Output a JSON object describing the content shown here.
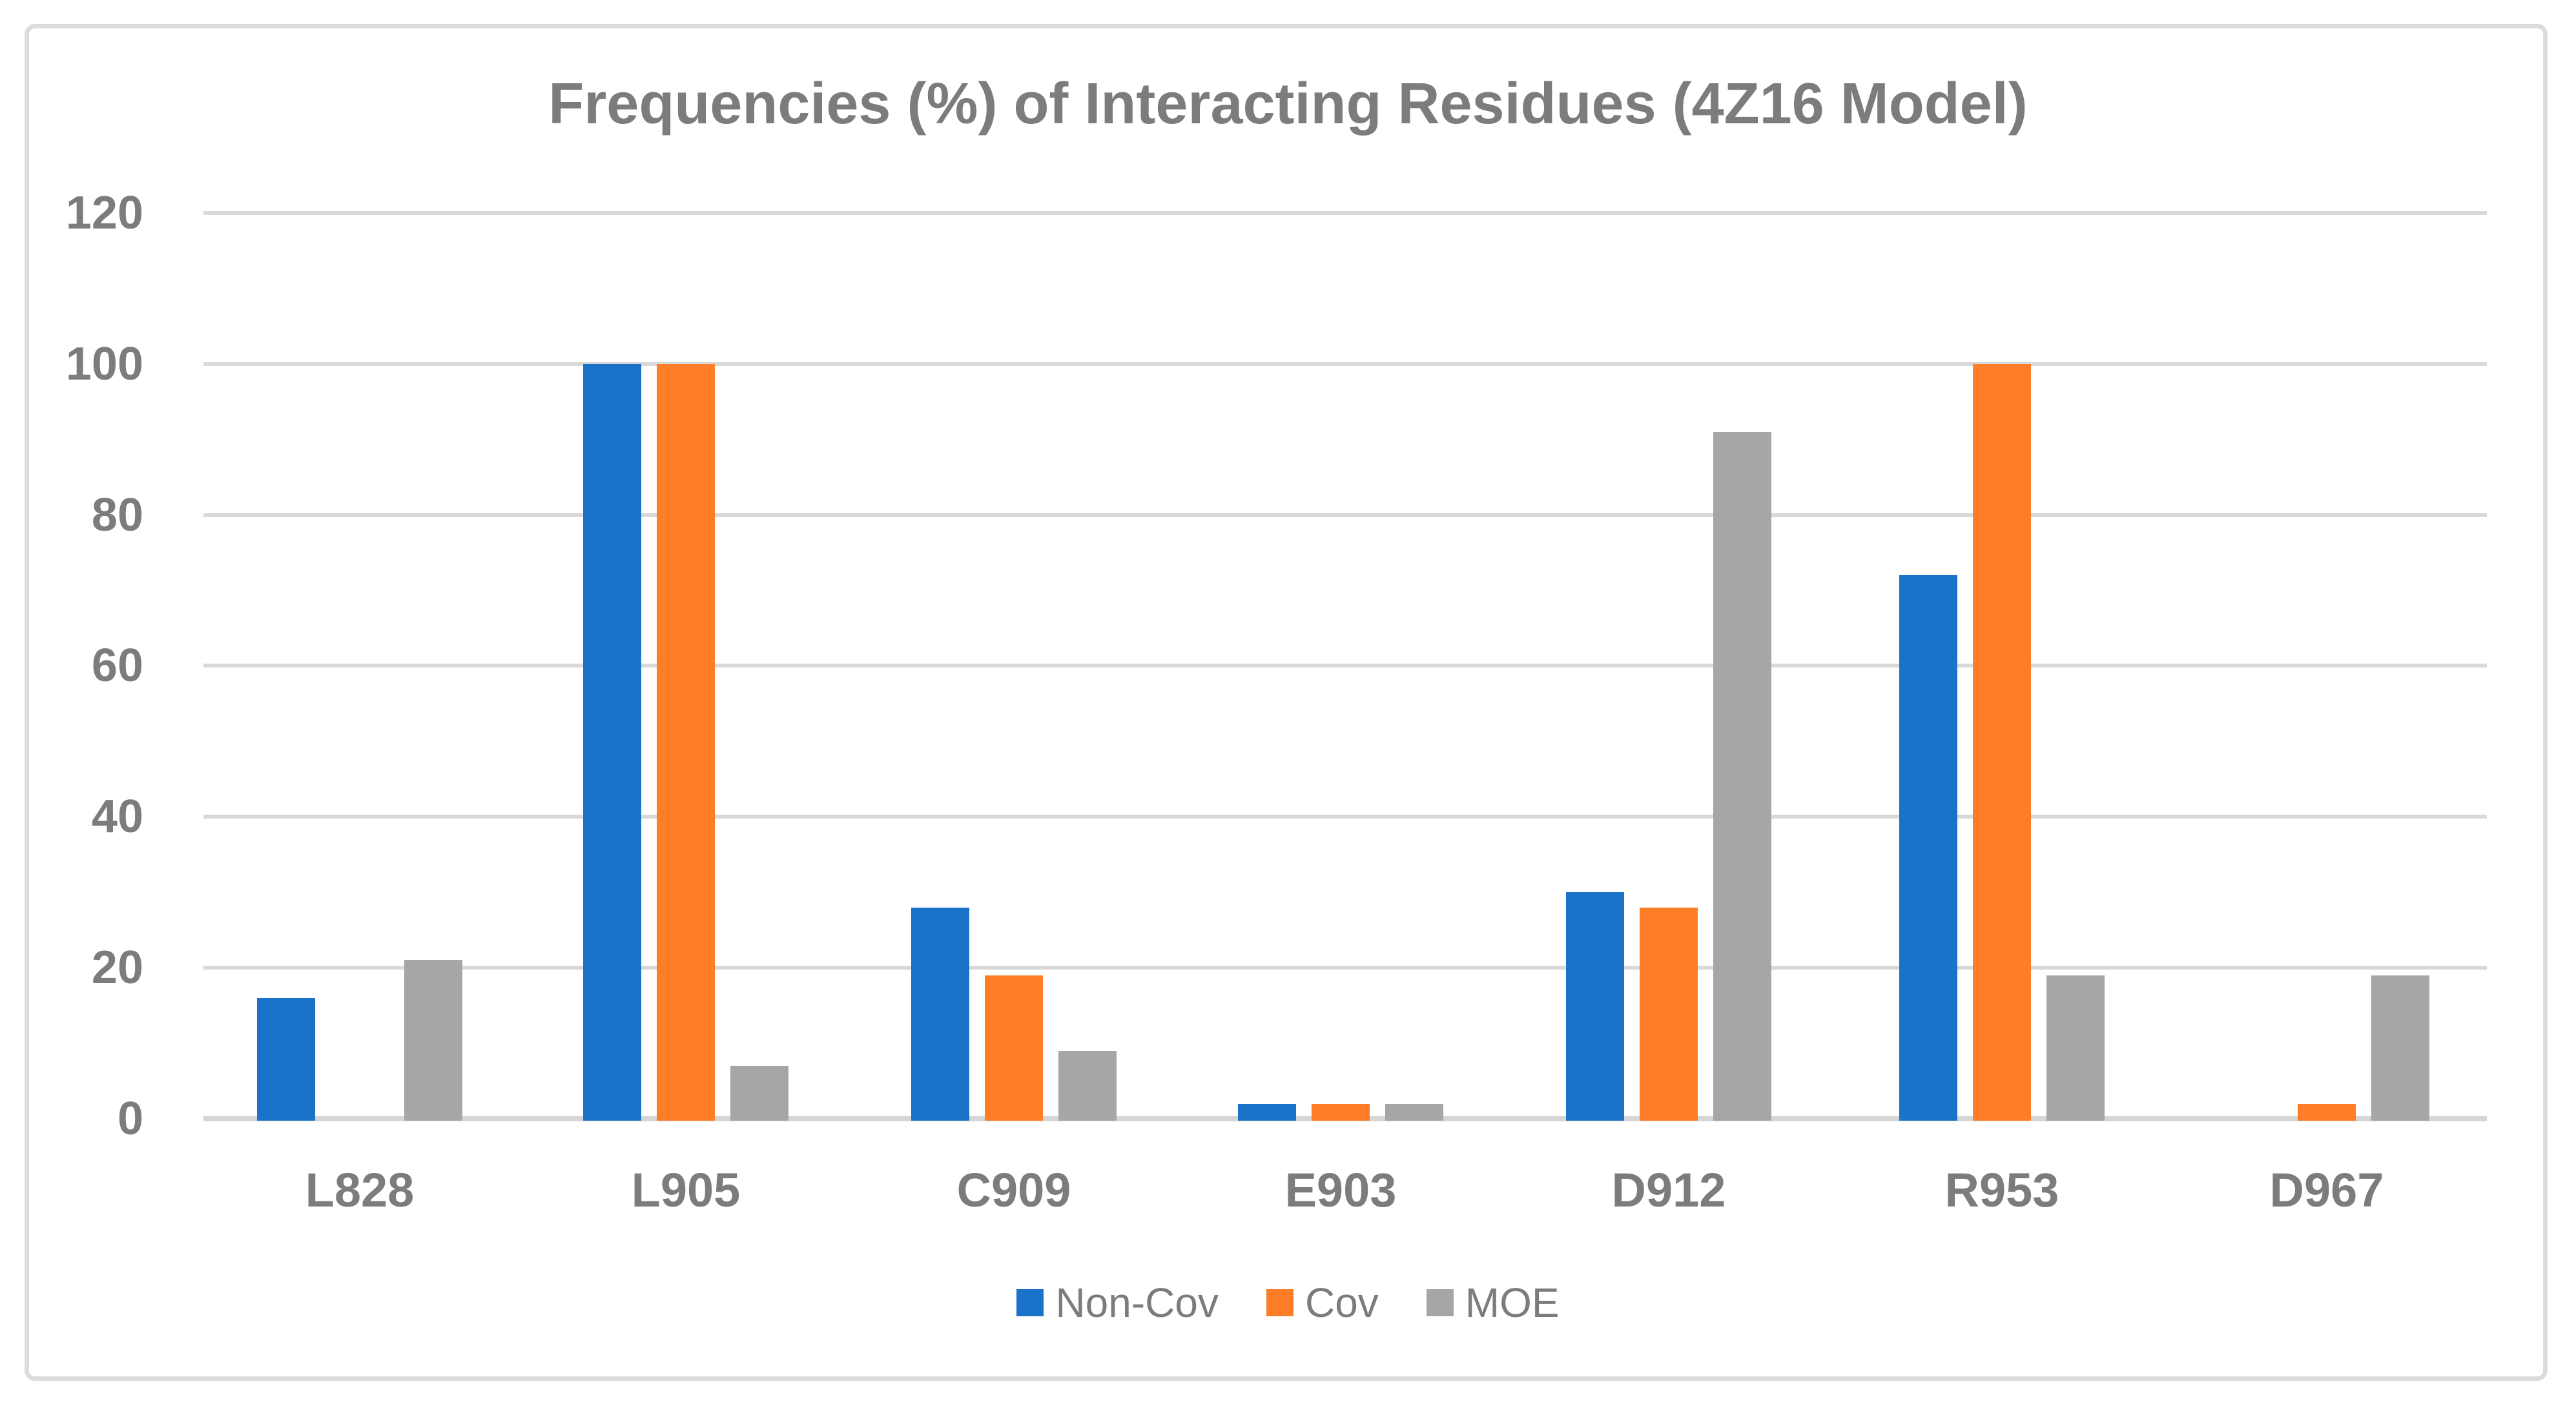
{
  "title": "Frequencies (%) of Interacting Residues (4Z16 Model)",
  "chart_data": {
    "type": "bar",
    "title": "Frequencies (%) of Interacting Residues (4Z16 Model)",
    "categories": [
      "L828",
      "L905",
      "C909",
      "E903",
      "D912",
      "R953",
      "D967"
    ],
    "series": [
      {
        "name": "Non-Cov",
        "color": "#1A73C8",
        "values": [
          16,
          100,
          28,
          2,
          30,
          72,
          0
        ]
      },
      {
        "name": "Cov",
        "color": "#FD7E27",
        "values": [
          0,
          100,
          19,
          2,
          28,
          100,
          2
        ]
      },
      {
        "name": "MOE",
        "color": "#A6A6A6",
        "values": [
          21,
          7,
          9,
          2,
          91,
          19,
          19
        ]
      }
    ],
    "xlabel": "",
    "ylabel": "",
    "ylim": [
      0,
      120
    ],
    "yticks": [
      0,
      20,
      40,
      60,
      80,
      100,
      120
    ],
    "grid": true,
    "legend_position": "bottom",
    "colors": {
      "text": "#7C7C7C",
      "gridline": "#D9D9D9",
      "axis_line": "#D6D6D6",
      "frame_border": "#DCDCDC",
      "background": "#FFFFFF"
    }
  }
}
